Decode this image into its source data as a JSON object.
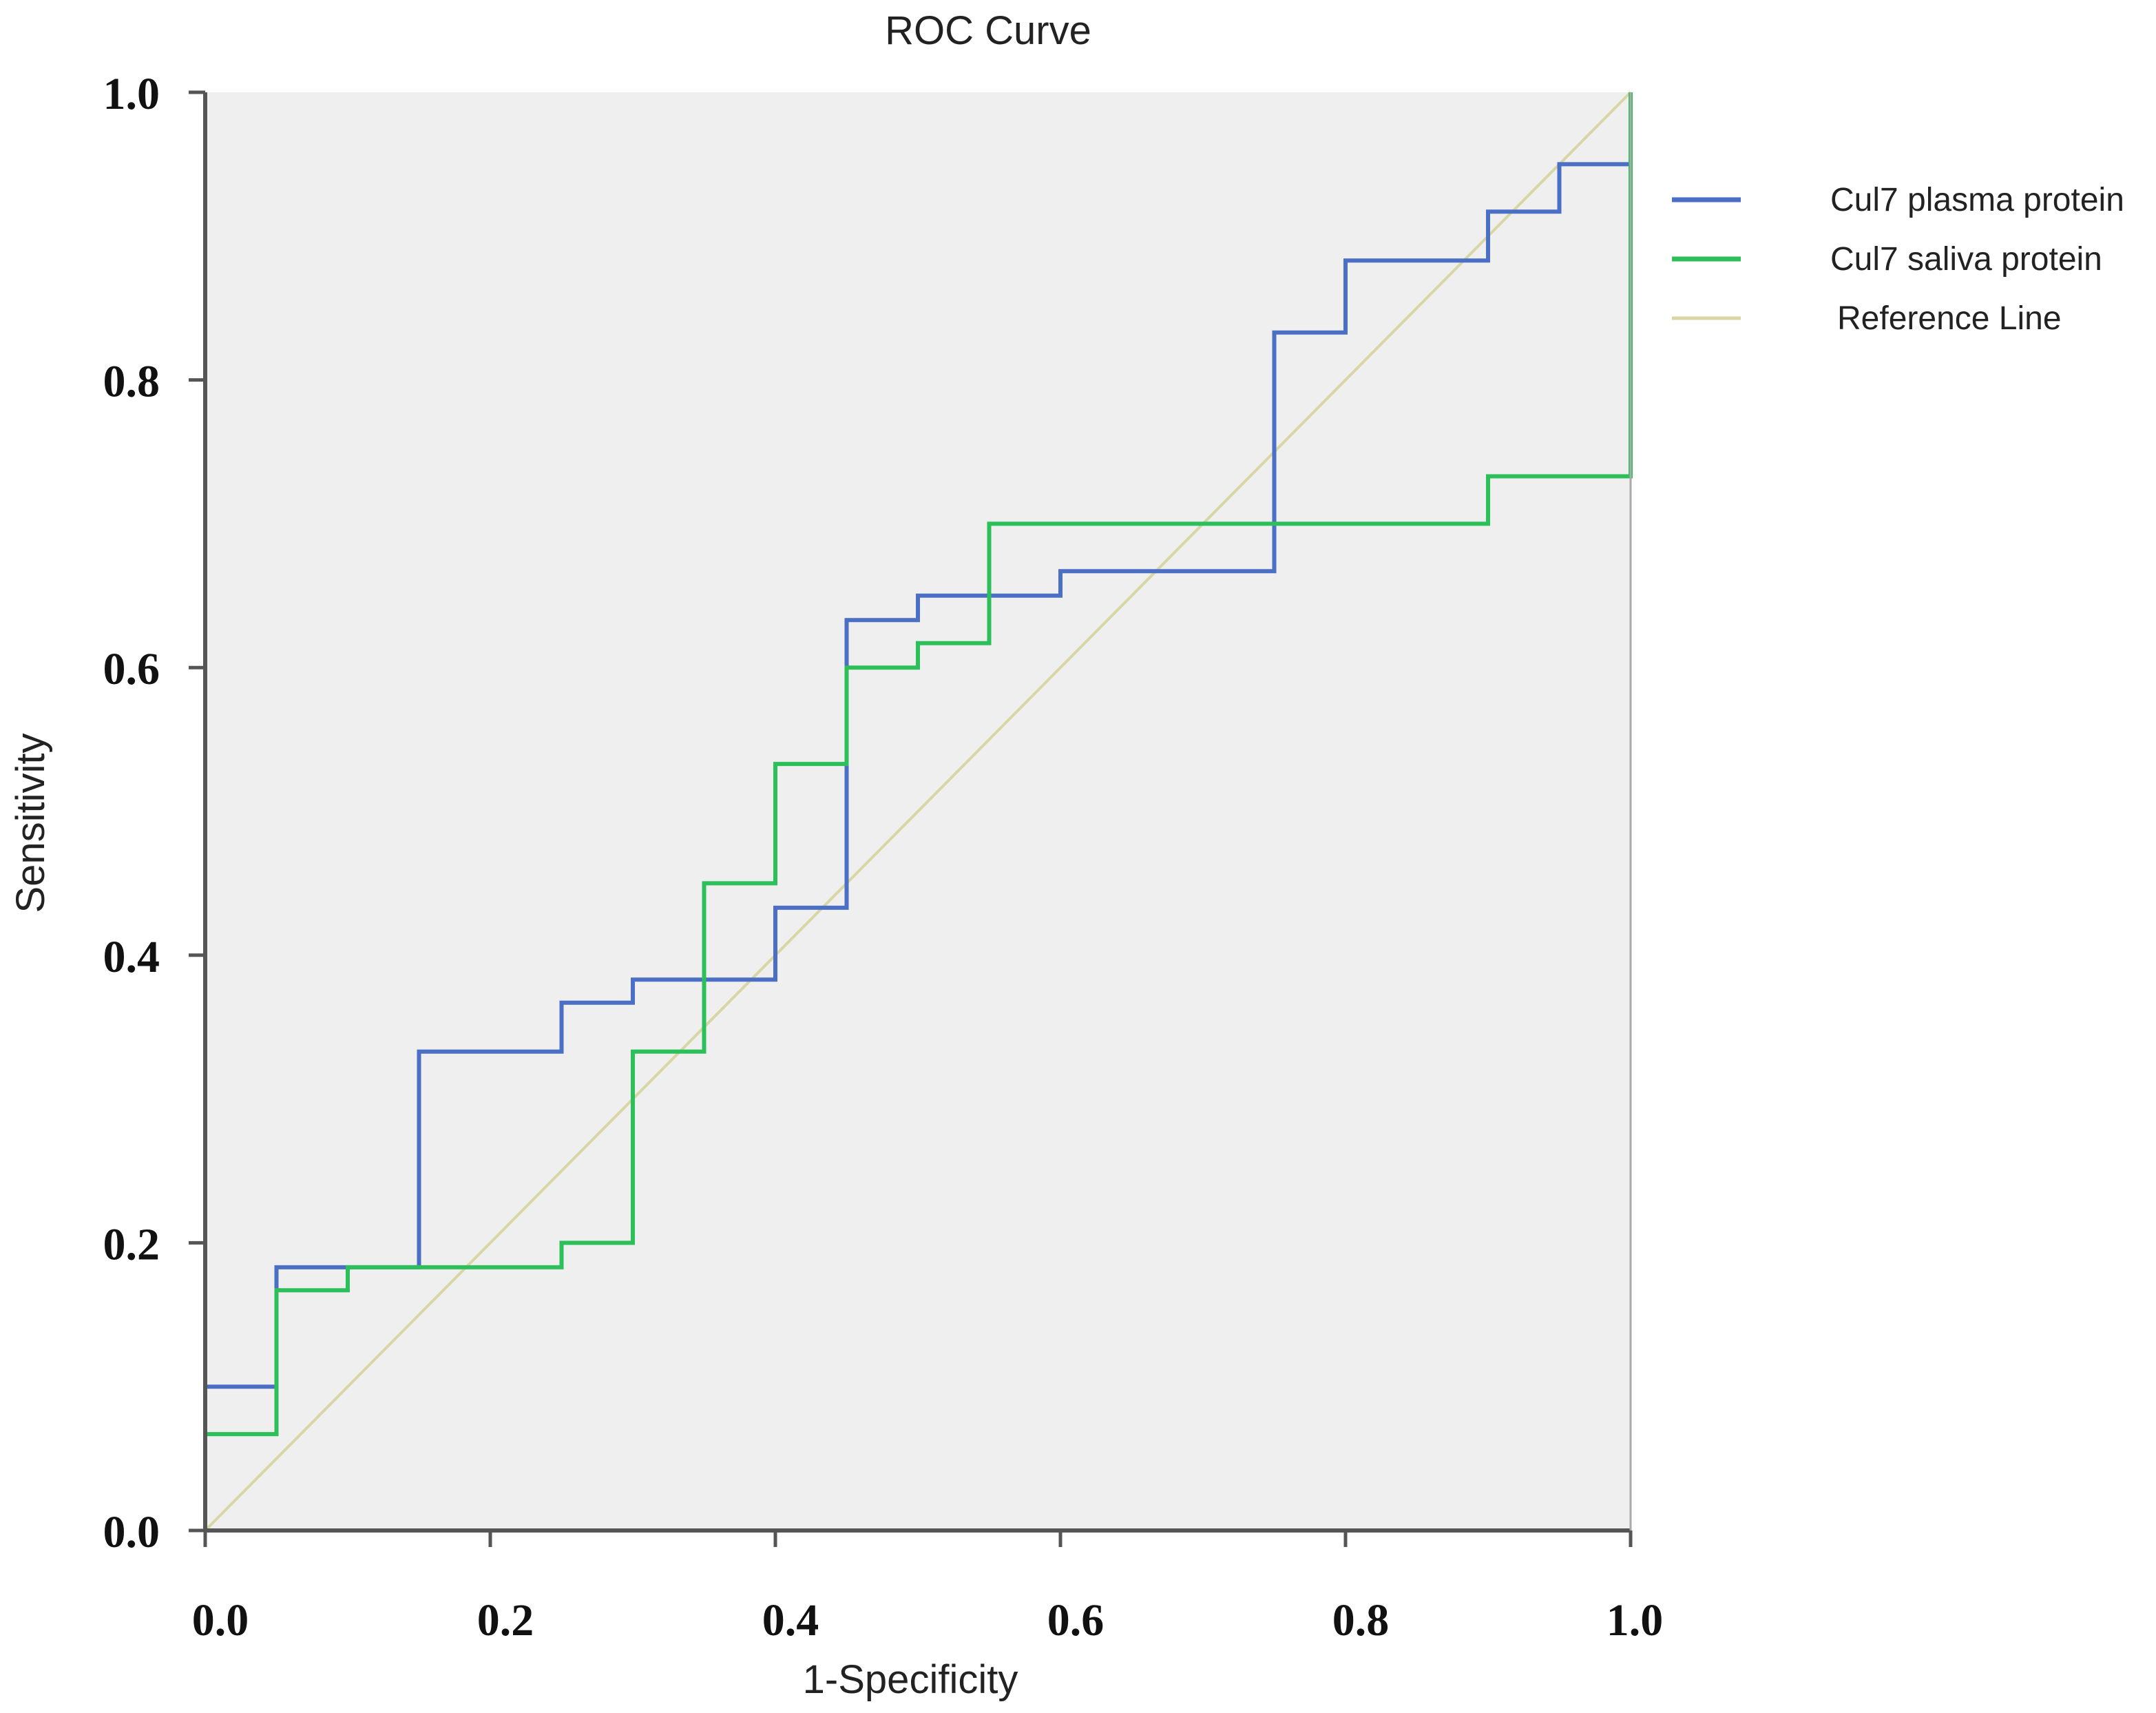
{
  "chart_data": {
    "type": "line",
    "title": "ROC Curve",
    "xlabel": "1-Specificity",
    "ylabel": "Sensitivity",
    "xlim": [
      0,
      1
    ],
    "ylim": [
      0,
      1
    ],
    "x_ticks": [
      0.0,
      0.2,
      0.4,
      0.6,
      0.8,
      1.0
    ],
    "x_tick_labels": [
      "0.0",
      "0.2",
      "0.4",
      "0.6",
      "0.8",
      "1.0"
    ],
    "y_ticks": [
      0.0,
      0.2,
      0.4,
      0.6,
      0.8,
      1.0
    ],
    "y_tick_labels": [
      "0.0",
      "0.2",
      "0.4",
      "0.6",
      "0.8",
      "1.0"
    ],
    "grid": false,
    "legend_position": "right",
    "series": [
      {
        "name": "Cul7 plasma protein",
        "color": "#4a6fc4",
        "step": true,
        "x": [
          0.0,
          0.0,
          0.05,
          0.05,
          0.15,
          0.15,
          0.25,
          0.25,
          0.3,
          0.3,
          0.4,
          0.4,
          0.45,
          0.45,
          0.5,
          0.5,
          0.6,
          0.6,
          0.75,
          0.75,
          0.8,
          0.8,
          0.9,
          0.9,
          0.95,
          0.95,
          1.0,
          1.0
        ],
        "y": [
          0.0,
          0.1,
          0.1,
          0.183,
          0.183,
          0.333,
          0.333,
          0.367,
          0.367,
          0.383,
          0.383,
          0.433,
          0.433,
          0.633,
          0.633,
          0.65,
          0.65,
          0.667,
          0.667,
          0.833,
          0.833,
          0.883,
          0.883,
          0.917,
          0.917,
          0.95,
          0.95,
          1.0
        ]
      },
      {
        "name": "Cul7 saliva protein",
        "color": "#2dbf5a",
        "step": true,
        "x": [
          0.0,
          0.0,
          0.05,
          0.05,
          0.1,
          0.1,
          0.25,
          0.25,
          0.3,
          0.3,
          0.35,
          0.35,
          0.4,
          0.4,
          0.45,
          0.45,
          0.5,
          0.5,
          0.55,
          0.55,
          0.9,
          0.9,
          1.0,
          1.0
        ],
        "y": [
          0.0,
          0.067,
          0.067,
          0.167,
          0.167,
          0.183,
          0.183,
          0.2,
          0.2,
          0.333,
          0.333,
          0.45,
          0.45,
          0.533,
          0.533,
          0.6,
          0.6,
          0.617,
          0.617,
          0.7,
          0.7,
          0.733,
          0.733,
          1.0
        ]
      },
      {
        "name": "Reference Line",
        "color": "#d8d6a4",
        "step": false,
        "x": [
          0.0,
          1.0
        ],
        "y": [
          0.0,
          1.0
        ]
      }
    ]
  }
}
